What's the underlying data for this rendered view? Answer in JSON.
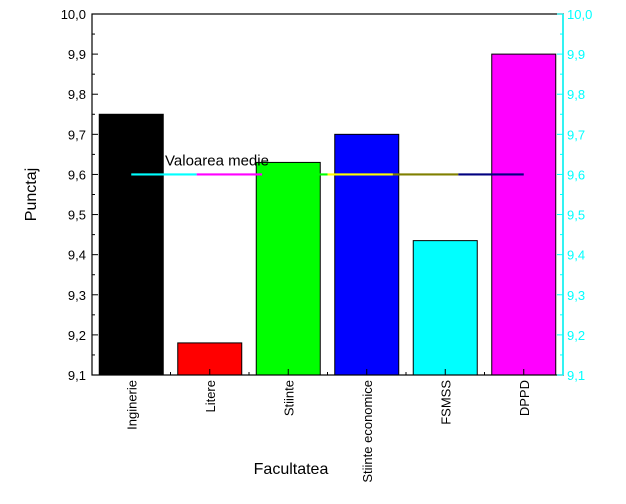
{
  "chart_data": {
    "type": "bar",
    "xlabel": "Facultatea",
    "ylabel": "Punctaj",
    "ylim": [
      9.1,
      10.0
    ],
    "yticks": [
      "9,1",
      "9,2",
      "9,3",
      "9,4",
      "9,5",
      "9,6",
      "9,7",
      "9,8",
      "9,9",
      "10,0"
    ],
    "right_axis_color": "#00ffff",
    "categories": [
      "Inginerie",
      "Litere",
      "Stiinte",
      "Stiinte economice",
      "FSMSS",
      "DPPD"
    ],
    "values": [
      9.75,
      9.18,
      9.63,
      9.7,
      9.435,
      9.9
    ],
    "bar_colors": [
      "#000000",
      "#ff0000",
      "#00ff00",
      "#0000ff",
      "#00ffff",
      "#ff00ff"
    ],
    "mean": {
      "label": "Valoarea medie",
      "value": 9.6,
      "segment_colors": [
        "#00ffff",
        "#ff00ff",
        "#00ff00",
        "#ffff00",
        "#808000",
        "#000080"
      ]
    },
    "grid": false
  }
}
